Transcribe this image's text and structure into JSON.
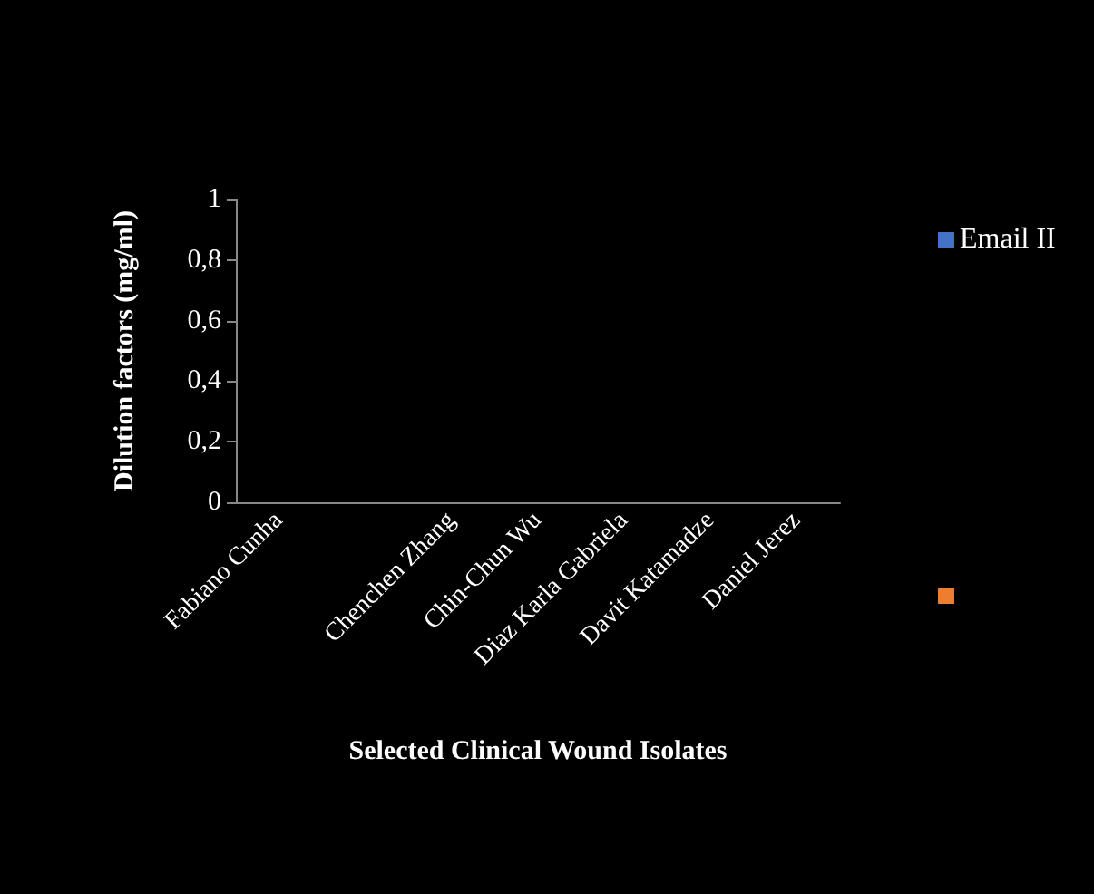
{
  "chart_data": {
    "type": "bar",
    "xlabel": "Selected Clinical Wound Isolates",
    "ylabel": "Dilution factors (mg/ml)",
    "categories": [
      "Fabiano Cunha",
      null,
      "Chenchen Zhang",
      "Chin-Chun Wu",
      "Diaz Karla Gabriela",
      "Davit Katamadze",
      "Daniel Jerez"
    ],
    "series": [
      {
        "name": "Email II",
        "color": "#4472c4",
        "values": [
          0,
          null,
          0,
          0,
          0,
          0,
          0
        ]
      },
      {
        "color": "#ed7d31",
        "values": [
          null,
          null,
          null,
          null,
          null,
          null,
          null
        ]
      }
    ],
    "ylim": [
      0,
      1
    ],
    "yticks": [
      0,
      {
        "value": 0.2,
        "label": "0,2"
      },
      {
        "value": 0.4,
        "label": "0,4"
      },
      {
        "value": 0.6,
        "label": "0,6"
      },
      {
        "value": 0.8,
        "label": "0,8"
      },
      1
    ],
    "grid": false,
    "legend": "right"
  }
}
